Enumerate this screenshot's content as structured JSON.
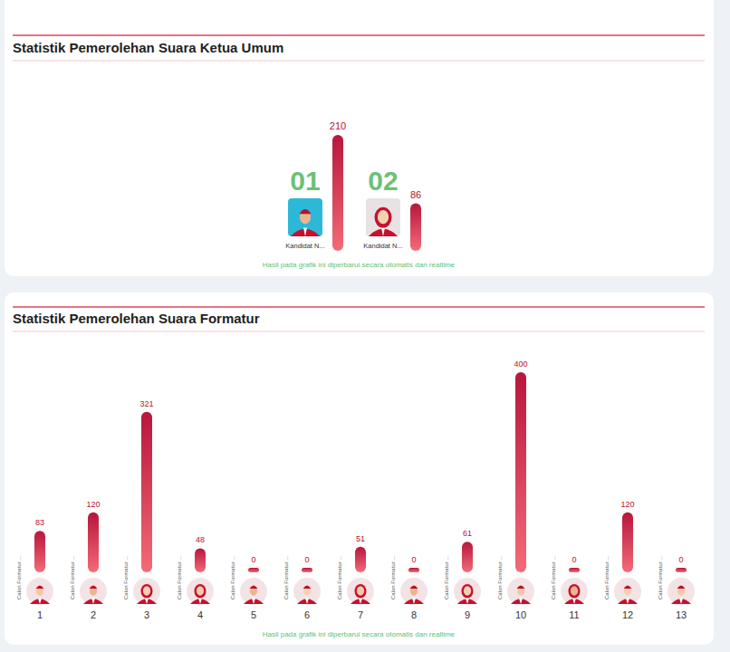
{
  "chart_data": [
    {
      "type": "bar",
      "title": "Statistik Pemerolehan Suara Ketua Umum",
      "categories": [
        "01",
        "02"
      ],
      "labels": [
        "Kandidat N...",
        "Kandidat N..."
      ],
      "values": [
        210,
        86
      ],
      "color": "#b8163c",
      "ylim": [
        0,
        210
      ],
      "data_labels": true,
      "tick_labels": false,
      "grid": false,
      "annotations": [
        "Hasil pada grafik ini diperbarui secara otomatis dan realtime"
      ]
    },
    {
      "type": "bar",
      "title": "Statistik Pemerolehan Suara Formatur",
      "categories": [
        "1",
        "2",
        "3",
        "4",
        "5",
        "6",
        "7",
        "8",
        "9",
        "10",
        "11",
        "12",
        "13"
      ],
      "labels": [
        "Calon Formatur ...",
        "Calon Formatur ...",
        "Calon Formatur ...",
        "Calon Formatur ...",
        "Calon Formatur ...",
        "Calon Formatur ...",
        "Calon Formatur ...",
        "Calon Formatur ...",
        "Calon Formatur ...",
        "Calon Formatur ...",
        "Calon Formatur ...",
        "Calon Formatur ...",
        "Calon Formatur ..."
      ],
      "values": [
        83,
        120,
        321,
        48,
        0,
        0,
        51,
        0,
        61,
        400,
        0,
        120,
        0
      ],
      "color": "#b8163c",
      "ylim": [
        0,
        400
      ],
      "data_labels": true,
      "tick_labels": false,
      "grid": false,
      "annotations": [
        "Hasil pada grafik ini diperbarui secara otomatis dan realtime"
      ]
    }
  ]
}
